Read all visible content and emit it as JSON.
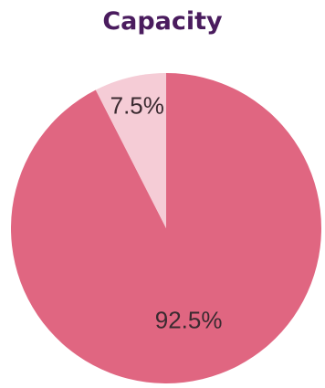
{
  "chart_data": {
    "type": "pie",
    "title": "Capacity",
    "slices": [
      {
        "label": "92.5%",
        "value": 92.5,
        "color": "#e06681"
      },
      {
        "label": "7.5%",
        "value": 7.5,
        "color": "#f5ccd6"
      }
    ]
  }
}
